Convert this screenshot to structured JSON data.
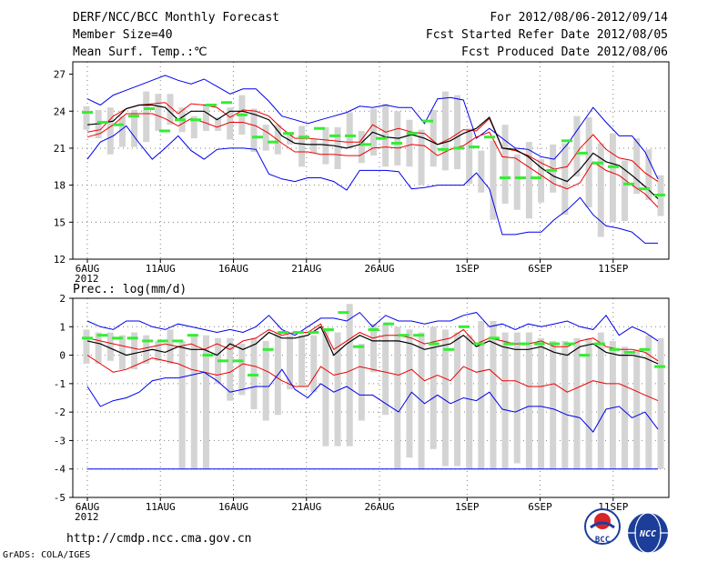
{
  "header": {
    "title": "DERF/NCC/BCC Monthly Forecast",
    "member_size": "Member Size=40",
    "variable": "Mean Surf. Temp.:℃",
    "period": "For 2012/08/06-2012/09/14",
    "started": "Fcst Started Refer Date 2012/08/05",
    "produced": "Fcst Produced Date 2012/08/06"
  },
  "footer": {
    "url": "http://cmdp.ncc.cma.gov.cn",
    "credit": "GrADS: COLA/IGES",
    "logo_bcc": "BCC",
    "logo_ncc": "NCC"
  },
  "colors": {
    "envelope": "#0000ee",
    "spread": "#ee0000",
    "mean": "#000000",
    "median_bar": "#33ee33",
    "box": "#d4d4d4",
    "grid": "#808080"
  },
  "chart_data": [
    {
      "type": "line",
      "title": "Mean Surf. Temp.:℃",
      "ylim": [
        12,
        28
      ],
      "yticks": [
        "12",
        "15",
        "18",
        "21",
        "24",
        "27"
      ],
      "ytick_values": [
        12,
        15,
        18,
        21,
        24,
        27
      ],
      "xtick_labels": [
        "6AUG",
        "11AUG",
        "16AUG",
        "21AUG",
        "26AUG",
        "1SEP",
        "6SEP",
        "11SEP"
      ],
      "xtick_days": [
        0,
        5,
        10,
        15,
        20,
        26,
        31,
        36
      ],
      "year_label": "2012",
      "days": 40,
      "series": [
        {
          "name": "max",
          "values": [
            25.0,
            24.5,
            25.3,
            25.7,
            26.1,
            26.5,
            26.9,
            26.5,
            26.2,
            26.6,
            26.0,
            25.4,
            25.8,
            25.8,
            24.8,
            23.6,
            23.3,
            23.0,
            23.3,
            23.6,
            23.9,
            24.4,
            24.3,
            24.5,
            24.3,
            24.3,
            23.0,
            25.0,
            25.1,
            24.9,
            21.8,
            22.6,
            21.8,
            21.0,
            20.9,
            20.3,
            20.1,
            21.3,
            22.8,
            24.3,
            23.1,
            22.0,
            22.0,
            20.7,
            18.5
          ]
        },
        {
          "name": "upper",
          "values": [
            22.3,
            22.5,
            23.6,
            24.2,
            24.5,
            24.6,
            24.7,
            23.8,
            24.6,
            24.5,
            24.3,
            23.5,
            24.1,
            24.0,
            23.6,
            22.6,
            21.8,
            21.8,
            21.7,
            21.6,
            21.5,
            21.5,
            22.9,
            22.3,
            22.6,
            22.3,
            22.2,
            21.3,
            21.8,
            22.5,
            22.4,
            23.4,
            21.0,
            20.8,
            20.4,
            19.8,
            19.3,
            19.5,
            21.0,
            22.1,
            20.9,
            20.2,
            20.0,
            19.0,
            18.3
          ]
        },
        {
          "name": "mean",
          "values": [
            22.9,
            23.0,
            23.2,
            24.2,
            24.5,
            24.5,
            24.3,
            23.3,
            24.0,
            24.0,
            23.3,
            24.0,
            24.0,
            23.7,
            23.3,
            22.0,
            21.4,
            21.3,
            21.3,
            21.2,
            21.0,
            21.3,
            22.3,
            21.9,
            21.8,
            22.1,
            21.8,
            21.3,
            21.6,
            22.2,
            22.6,
            23.5,
            21.0,
            20.9,
            20.3,
            19.4,
            18.7,
            18.3,
            19.3,
            20.6,
            19.9,
            19.6,
            18.8,
            17.9,
            16.9
          ]
        },
        {
          "name": "lower",
          "values": [
            21.9,
            22.2,
            22.9,
            23.8,
            23.8,
            23.8,
            23.4,
            22.8,
            23.4,
            23.1,
            22.7,
            23.1,
            23.1,
            22.8,
            22.2,
            21.4,
            20.7,
            20.7,
            20.5,
            20.5,
            20.4,
            20.4,
            21.0,
            21.1,
            21.0,
            21.3,
            21.2,
            20.4,
            20.9,
            21.2,
            21.9,
            22.3,
            20.3,
            20.2,
            19.5,
            18.8,
            18.1,
            17.7,
            18.2,
            19.9,
            19.2,
            18.8,
            18.0,
            17.3,
            16.2
          ]
        },
        {
          "name": "min",
          "values": [
            20.1,
            21.5,
            22.0,
            22.8,
            21.4,
            20.1,
            21.0,
            22.0,
            20.8,
            20.1,
            20.9,
            21.0,
            21.0,
            20.9,
            18.9,
            18.5,
            18.3,
            18.6,
            18.6,
            18.3,
            17.6,
            19.2,
            19.2,
            19.2,
            19.1,
            17.7,
            17.8,
            18.0,
            18.0,
            18.0,
            19.0,
            17.7,
            14.0,
            14.0,
            14.2,
            14.2,
            15.2,
            16.0,
            17.0,
            15.6,
            14.7,
            14.5,
            14.2,
            13.3,
            13.3
          ]
        }
      ],
      "box_low": [
        22.5,
        21.8,
        20.5,
        21.1,
        21.1,
        21.5,
        22.4,
        22.9,
        22.3,
        21.8,
        22.4,
        22.4,
        21.7,
        22.1,
        20.7,
        20.8,
        20.5,
        21.3,
        19.5,
        20.6,
        19.7,
        19.3,
        21.0,
        19.8,
        20.4,
        19.5,
        19.6,
        19.5,
        18.0,
        19.5,
        19.2,
        19.3,
        18.1,
        17.4,
        15.2,
        16.5,
        16.0,
        15.3,
        16.6,
        17.4,
        15.6,
        18.7,
        16.2,
        13.8,
        15.0,
        15.1,
        17.3,
        16.8,
        15.5
      ],
      "box_high": [
        24.4,
        24.1,
        24.3,
        23.6,
        24.1,
        25.6,
        25.4,
        25.4,
        24.3,
        23.6,
        24.6,
        23.5,
        24.3,
        25.3,
        24.2,
        22.9,
        22.9,
        22.2,
        22.8,
        21.7,
        22.7,
        22.7,
        23.9,
        22.4,
        24.2,
        24.6,
        24.0,
        23.3,
        22.5,
        24.1,
        25.6,
        25.3,
        22.6,
        20.8,
        21.6,
        22.9,
        20.5,
        21.5,
        20.1,
        21.3,
        21.4,
        23.6,
        23.5,
        21.4,
        22.2,
        20.0,
        21.8,
        20.9,
        18.8
      ],
      "median_marks": [
        23.9,
        23.1,
        22.9,
        23.6,
        24.2,
        22.4,
        23.3,
        23.3,
        24.5,
        24.7,
        23.7,
        21.9,
        21.5,
        22.2,
        21.9,
        22.6,
        22.0,
        22.0,
        21.3,
        21.8,
        21.4,
        22.2,
        23.2,
        20.9,
        21.0,
        21.1,
        21.9,
        18.6,
        18.6,
        18.6,
        19.2,
        21.6,
        20.6,
        19.8,
        19.5,
        18.1,
        17.7,
        17.2
      ]
    },
    {
      "type": "line",
      "title": "Prec.: log(mm/d)",
      "ylim": [
        -5,
        2
      ],
      "yticks": [
        "-5",
        "-4",
        "-3",
        "-2",
        "-1",
        "0",
        "1",
        "2"
      ],
      "ytick_values": [
        -5,
        -4,
        -3,
        -2,
        -1,
        0,
        1,
        2
      ],
      "xtick_labels": [
        "6AUG",
        "11AUG",
        "16AUG",
        "21AUG",
        "26AUG",
        "1SEP",
        "6SEP",
        "11SEP"
      ],
      "xtick_days": [
        0,
        5,
        10,
        15,
        20,
        26,
        31,
        36
      ],
      "year_label": "2012",
      "days": 40,
      "series": [
        {
          "name": "max",
          "values": [
            1.2,
            1.0,
            0.9,
            1.2,
            1.2,
            1.0,
            0.9,
            1.1,
            1.0,
            0.9,
            0.8,
            0.9,
            0.8,
            1.0,
            1.4,
            0.9,
            0.7,
            1.0,
            1.3,
            1.3,
            1.2,
            1.5,
            1.0,
            1.4,
            1.2,
            1.2,
            1.1,
            1.2,
            1.2,
            1.4,
            1.5,
            1.0,
            1.1,
            0.9,
            1.1,
            1.0,
            1.1,
            1.2,
            1.0,
            0.9,
            1.4,
            0.7,
            1.0,
            0.8,
            0.5
          ]
        },
        {
          "name": "upper",
          "values": [
            0.6,
            0.5,
            0.4,
            0.3,
            0.2,
            0.3,
            0.4,
            0.3,
            0.4,
            0.2,
            0.4,
            0.2,
            0.5,
            0.6,
            0.9,
            0.7,
            0.8,
            0.8,
            1.1,
            0.2,
            0.5,
            0.8,
            0.6,
            0.7,
            0.7,
            0.6,
            0.4,
            0.5,
            0.6,
            0.9,
            0.4,
            0.6,
            0.5,
            0.4,
            0.4,
            0.5,
            0.3,
            0.3,
            0.5,
            0.6,
            0.3,
            0.2,
            0.2,
            0.1,
            -0.2
          ]
        },
        {
          "name": "mean",
          "values": [
            0.5,
            0.4,
            0.2,
            0.0,
            0.1,
            0.2,
            0.1,
            0.3,
            0.2,
            0.2,
            0.0,
            0.4,
            0.2,
            0.4,
            0.8,
            0.6,
            0.6,
            0.7,
            1.0,
            0.0,
            0.4,
            0.7,
            0.5,
            0.5,
            0.5,
            0.4,
            0.2,
            0.3,
            0.4,
            0.7,
            0.3,
            0.5,
            0.3,
            0.2,
            0.2,
            0.3,
            0.1,
            0.0,
            0.3,
            0.4,
            0.1,
            0.0,
            0.0,
            -0.1,
            -0.3
          ]
        },
        {
          "name": "lower",
          "values": [
            0.0,
            -0.3,
            -0.6,
            -0.5,
            -0.3,
            -0.1,
            -0.2,
            -0.3,
            -0.5,
            -0.6,
            -0.7,
            -0.6,
            -0.3,
            -0.4,
            -0.6,
            -0.9,
            -1.1,
            -1.1,
            -0.4,
            -0.7,
            -0.6,
            -0.4,
            -0.5,
            -0.6,
            -0.7,
            -0.5,
            -0.9,
            -0.7,
            -0.9,
            -0.4,
            -0.6,
            -0.5,
            -0.9,
            -0.9,
            -1.1,
            -1.1,
            -1.0,
            -1.3,
            -1.1,
            -0.9,
            -1.0,
            -1.0,
            -1.2,
            -1.4,
            -1.6
          ]
        },
        {
          "name": "min",
          "values": [
            -1.1,
            -1.8,
            -1.6,
            -1.5,
            -1.3,
            -0.9,
            -0.8,
            -0.8,
            -0.7,
            -0.6,
            -0.9,
            -1.3,
            -1.2,
            -1.1,
            -1.1,
            -0.5,
            -1.2,
            -1.5,
            -1.0,
            -1.3,
            -1.1,
            -1.4,
            -1.4,
            -1.7,
            -2.0,
            -1.3,
            -1.7,
            -1.4,
            -1.7,
            -1.5,
            -1.6,
            -1.3,
            -1.9,
            -2.0,
            -1.8,
            -1.8,
            -1.9,
            -2.1,
            -2.2,
            -2.7,
            -1.9,
            -1.8,
            -2.2,
            -2.0,
            -2.6
          ]
        },
        {
          "name": "floor",
          "values": [
            -4.0,
            -4.0,
            -4.0,
            -4.0,
            -4.0,
            -4.0,
            -4.0,
            -4.0,
            -4.0,
            -4.0,
            -4.0,
            -4.0,
            -4.0,
            -4.0,
            -4.0,
            -4.0,
            -4.0,
            -4.0,
            -4.0,
            -4.0,
            -4.0,
            -4.0,
            -4.0,
            -4.0,
            -4.0,
            -4.0,
            -4.0,
            -4.0,
            -4.0,
            -4.0,
            -4.0,
            -4.0,
            -4.0,
            -4.0,
            -4.0,
            -4.0,
            -4.0,
            -4.0,
            -4.0,
            -4.0,
            -4.0,
            -4.0,
            -4.0,
            -4.0,
            -4.0
          ]
        }
      ],
      "box_low": [
        -0.3,
        -0.3,
        -0.2,
        -0.5,
        -0.5,
        -0.3,
        -0.2,
        -0.3,
        -4.0,
        -4.0,
        -4.0,
        -1.0,
        -1.6,
        -1.4,
        -1.9,
        -2.3,
        -2.1,
        -1.2,
        -1.1,
        -1.3,
        -3.2,
        -3.2,
        -3.2,
        -2.3,
        -0.6,
        -2.1,
        -4.0,
        -3.6,
        -4.0,
        -3.3,
        -3.9,
        -3.9,
        -4.0,
        -4.0,
        -4.0,
        -4.0,
        -3.8,
        -4.0,
        -4.0,
        -4.0,
        -4.0,
        -4.0,
        -4.0,
        -4.0,
        -4.0,
        -4.0,
        -4.0,
        -4.0,
        -4.0
      ],
      "box_high": [
        0.9,
        0.8,
        0.8,
        0.7,
        0.8,
        0.7,
        0.5,
        0.9,
        0.5,
        0.7,
        0.7,
        0.6,
        0.6,
        0.4,
        0.6,
        0.5,
        0.8,
        0.7,
        0.7,
        0.7,
        0.9,
        0.8,
        1.8,
        0.4,
        1.1,
        1.1,
        1.0,
        0.9,
        0.8,
        1.0,
        0.9,
        0.8,
        0.7,
        1.2,
        1.2,
        0.8,
        0.8,
        0.8,
        0.6,
        0.5,
        0.5,
        0.6,
        0.6,
        0.8,
        0.5,
        0.3,
        0.2,
        0.7,
        0.6
      ],
      "median_marks": [
        0.6,
        0.7,
        0.6,
        0.6,
        0.5,
        0.5,
        0.5,
        0.7,
        0.0,
        -0.2,
        -0.2,
        -0.7,
        0.2,
        0.8,
        0.8,
        0.8,
        0.9,
        1.5,
        0.3,
        0.9,
        1.1,
        0.7,
        0.7,
        0.4,
        0.2,
        1.0,
        0.4,
        0.6,
        0.4,
        0.4,
        0.4,
        0.4,
        0.4,
        0.0,
        0.4,
        0.2,
        0.1,
        0.2,
        -0.4
      ]
    }
  ]
}
